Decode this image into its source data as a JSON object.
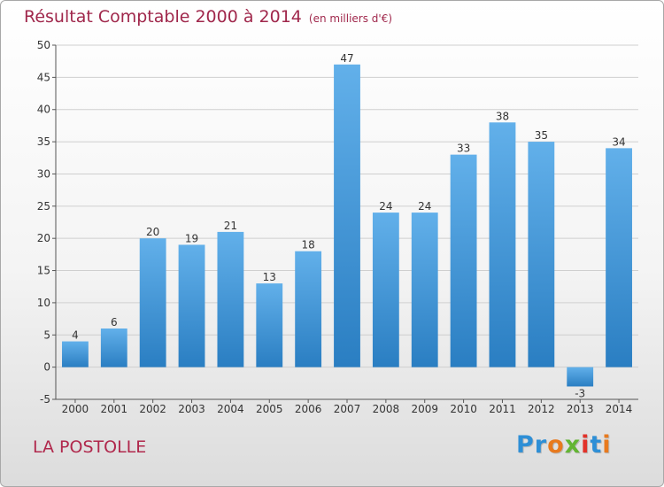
{
  "header": {
    "title": "Résultat Comptable 2000 à 2014",
    "subtitle": "(en milliers d'€)"
  },
  "footer": {
    "place": "LA POSTOLLE",
    "logo": {
      "letters": [
        "P",
        "r",
        "o",
        "x",
        "i",
        "t",
        "i"
      ],
      "colors": [
        "#2e8fd6",
        "#2e8fd6",
        "#e87a1e",
        "#63b533",
        "#e2322a",
        "#2e8fd6",
        "#e87a1e"
      ]
    }
  },
  "colors": {
    "bar_light": "#62b0ea",
    "bar_dark": "#2a7ec2",
    "axis": "#555555",
    "grid": "#cfcfcf",
    "label": "#333333"
  },
  "chart_data": {
    "type": "bar",
    "categories": [
      "2000",
      "2001",
      "2002",
      "2003",
      "2004",
      "2005",
      "2006",
      "2007",
      "2008",
      "2009",
      "2010",
      "2011",
      "2012",
      "2013",
      "2014"
    ],
    "values": [
      4,
      6,
      20,
      19,
      21,
      13,
      18,
      47,
      24,
      24,
      33,
      38,
      35,
      -3,
      34
    ],
    "ylim": [
      -5,
      50
    ],
    "yticks": [
      -5,
      0,
      5,
      10,
      15,
      20,
      25,
      30,
      35,
      40,
      45,
      50
    ],
    "grid": true,
    "xlabel": "",
    "ylabel": ""
  }
}
